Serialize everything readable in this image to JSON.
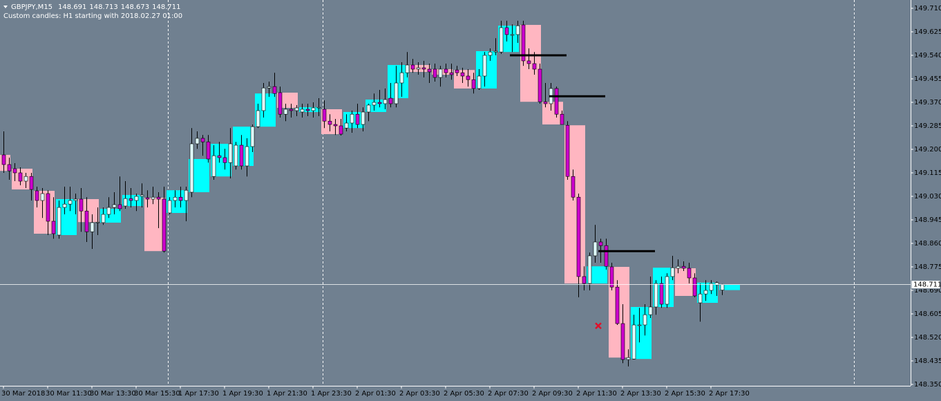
{
  "chart_data": {
    "type": "candlestick",
    "symbol": "GBPJPY,M15",
    "subtitle": "Custom candles: H1 starting with 2018.02.27 01:00",
    "categories": [
      "30 Mar 2018",
      null,
      null,
      null,
      null,
      null,
      null,
      null,
      "30 Mar 11:30",
      null,
      null,
      null,
      null,
      null,
      null,
      null,
      "30 Mar 13:30",
      null,
      null,
      null,
      null,
      null,
      null,
      null,
      "30 Mar 15:30",
      null,
      null,
      null,
      null,
      null,
      null,
      null,
      "1 Apr 17:30",
      null,
      null,
      null,
      null,
      null,
      null,
      null,
      "1 Apr 19:30",
      null,
      null,
      null,
      null,
      null,
      null,
      null,
      "1 Apr 21:30",
      null,
      null,
      null,
      null,
      null,
      null,
      null,
      "1 Apr 23:30",
      null,
      null,
      null,
      null,
      null,
      null,
      null,
      "2 Apr 01:30",
      null,
      null,
      null,
      null,
      null,
      null,
      null,
      "2 Apr 03:30",
      null,
      null,
      null,
      null,
      null,
      null,
      null,
      "2 Apr 05:30",
      null,
      null,
      null,
      null,
      null,
      null,
      null,
      "2 Apr 07:30",
      null,
      null,
      null,
      null,
      null,
      null,
      null,
      "2 Apr 09:30",
      null,
      null,
      null,
      null,
      null,
      null,
      null,
      "2 Apr 11:30",
      null,
      null,
      null,
      null,
      null,
      null,
      null,
      "2 Apr 13:30",
      null,
      null,
      null,
      null,
      null,
      null,
      null,
      "2 Apr 15:30",
      null,
      null,
      null,
      null,
      null,
      null,
      null,
      "2 Apr 17:30",
      null,
      null
    ],
    "open": [
      149.18,
      149.145,
      149.13,
      149.115,
      149.085,
      149.102,
      149.05,
      149.015,
      149.04,
      148.94,
      148.89,
      148.99,
      149.002,
      149.015,
      149.02,
      148.977,
      148.902,
      148.935,
      148.935,
      148.965,
      148.99,
      149.0,
      148.995,
      149.022,
      149.015,
      149.03,
      149.025,
      149.02,
      149.027,
      149.02,
      148.97,
      149.015,
      149.027,
      149.015,
      149.045,
      149.22,
      149.24,
      149.227,
      149.102,
      149.177,
      149.17,
      149.152,
      149.14,
      149.215,
      149.14,
      149.21,
      149.282,
      149.34,
      149.422,
      149.427,
      149.405,
      149.327,
      149.345,
      149.34,
      149.335,
      149.345,
      149.34,
      149.35,
      149.345,
      149.302,
      149.29,
      149.285,
      149.277,
      149.295,
      149.327,
      149.29,
      149.335,
      149.36,
      149.37,
      149.365,
      149.385,
      149.365,
      149.44,
      149.477,
      149.505,
      149.49,
      149.495,
      149.49,
      149.49,
      149.46,
      149.49,
      149.477,
      149.487,
      149.477,
      149.465,
      149.452,
      149.42,
      149.465,
      149.54,
      149.552,
      149.552,
      149.64,
      149.615,
      149.615,
      149.65,
      149.52,
      149.51,
      149.49,
      149.372,
      149.365,
      149.42,
      149.327,
      149.287,
      149.102,
      149.027,
      148.74,
      148.715,
      148.815,
      148.865,
      148.852,
      148.775,
      148.702,
      148.57,
      148.44,
      148.442,
      148.565,
      148.565,
      148.602,
      148.63,
      148.715,
      148.64,
      148.74,
      148.77,
      148.777,
      148.77,
      148.735,
      148.645,
      148.677,
      148.69,
      148.71,
      148.691
    ],
    "high": [
      149.265,
      149.17,
      149.15,
      149.135,
      149.115,
      149.115,
      149.065,
      149.06,
      149.052,
      149.027,
      149.015,
      149.065,
      149.065,
      149.04,
      149.06,
      149.027,
      148.965,
      148.99,
      148.99,
      149.027,
      149.045,
      149.102,
      149.085,
      149.06,
      149.04,
      149.077,
      149.052,
      149.065,
      149.045,
      149.065,
      149.027,
      149.052,
      149.065,
      149.065,
      149.277,
      149.265,
      149.252,
      149.252,
      149.215,
      149.227,
      149.202,
      149.277,
      149.227,
      149.252,
      149.24,
      149.29,
      149.365,
      149.44,
      149.445,
      149.477,
      149.427,
      149.365,
      149.365,
      149.36,
      149.365,
      149.365,
      149.37,
      149.385,
      149.377,
      149.327,
      149.31,
      149.31,
      149.327,
      149.34,
      149.365,
      149.352,
      149.365,
      149.402,
      149.415,
      149.42,
      149.44,
      149.502,
      149.515,
      149.552,
      149.527,
      149.515,
      149.52,
      149.51,
      149.51,
      149.502,
      149.51,
      149.51,
      149.502,
      149.495,
      149.49,
      149.477,
      149.49,
      149.552,
      149.565,
      149.602,
      149.665,
      149.665,
      149.652,
      149.665,
      149.665,
      149.565,
      149.552,
      149.51,
      149.44,
      149.44,
      149.427,
      149.34,
      149.302,
      149.127,
      149.04,
      148.777,
      148.827,
      148.927,
      148.877,
      148.877,
      148.79,
      148.727,
      148.64,
      148.477,
      148.602,
      148.627,
      148.64,
      148.74,
      148.727,
      148.74,
      148.752,
      148.815,
      148.802,
      148.795,
      148.79,
      148.752,
      148.715,
      148.727,
      148.727,
      148.722,
      148.713
    ],
    "low": [
      149.115,
      149.09,
      149.085,
      149.07,
      149.06,
      149.015,
      148.99,
      148.952,
      148.89,
      148.877,
      148.877,
      148.965,
      148.977,
      148.965,
      148.902,
      148.865,
      148.84,
      148.89,
      148.927,
      148.952,
      148.965,
      148.977,
      148.985,
      148.99,
      148.977,
      148.99,
      148.99,
      149.002,
      148.915,
      148.827,
      148.965,
      148.99,
      148.99,
      148.94,
      149.027,
      149.202,
      149.177,
      149.152,
      149.09,
      149.152,
      149.127,
      149.095,
      149.127,
      149.127,
      149.102,
      149.19,
      149.277,
      149.315,
      149.39,
      149.39,
      149.315,
      149.302,
      149.315,
      149.32,
      149.315,
      149.32,
      149.315,
      149.32,
      149.277,
      149.265,
      149.252,
      149.25,
      149.265,
      149.26,
      149.277,
      149.265,
      149.302,
      149.34,
      149.352,
      149.345,
      149.352,
      149.352,
      149.39,
      149.46,
      149.477,
      149.47,
      149.46,
      149.44,
      149.445,
      149.427,
      149.46,
      149.452,
      149.465,
      149.44,
      149.427,
      149.402,
      149.415,
      149.427,
      149.52,
      149.54,
      149.545,
      149.59,
      149.552,
      149.585,
      149.502,
      149.49,
      149.47,
      149.365,
      149.352,
      149.34,
      149.315,
      149.29,
      149.09,
      149.015,
      148.665,
      148.69,
      148.69,
      148.79,
      148.79,
      148.765,
      148.69,
      148.565,
      148.427,
      148.415,
      148.44,
      148.502,
      148.527,
      148.59,
      148.602,
      148.627,
      148.627,
      148.727,
      148.752,
      148.76,
      148.715,
      148.665,
      148.577,
      148.652,
      148.677,
      148.67,
      148.673
    ],
    "close": [
      149.145,
      149.122,
      149.115,
      149.085,
      149.102,
      149.055,
      149.015,
      149.04,
      148.94,
      148.895,
      148.99,
      149.002,
      149.015,
      149.02,
      148.977,
      148.902,
      148.935,
      148.937,
      148.965,
      148.99,
      149.0,
      148.985,
      149.022,
      149.015,
      149.03,
      149.035,
      149.02,
      149.027,
      149.02,
      148.832,
      149.015,
      149.027,
      149.015,
      149.052,
      149.22,
      149.24,
      149.227,
      149.165,
      149.177,
      149.17,
      149.152,
      149.22,
      149.215,
      149.14,
      149.21,
      149.282,
      149.34,
      149.422,
      149.427,
      149.402,
      149.327,
      149.345,
      149.34,
      149.35,
      149.345,
      149.34,
      149.35,
      149.352,
      149.302,
      149.29,
      149.285,
      149.255,
      149.295,
      149.327,
      149.29,
      149.335,
      149.36,
      149.37,
      149.365,
      149.38,
      149.365,
      149.44,
      149.477,
      149.505,
      149.49,
      149.495,
      149.49,
      149.48,
      149.46,
      149.49,
      149.477,
      149.47,
      149.477,
      149.465,
      149.452,
      149.42,
      149.465,
      149.54,
      149.552,
      149.555,
      149.64,
      149.615,
      149.615,
      149.647,
      149.52,
      149.51,
      149.49,
      149.372,
      149.365,
      149.42,
      149.327,
      149.29,
      149.102,
      149.027,
      148.74,
      148.715,
      148.815,
      148.865,
      148.852,
      148.777,
      148.702,
      148.57,
      148.44,
      148.447,
      148.565,
      148.565,
      148.602,
      148.63,
      148.715,
      148.64,
      148.74,
      148.772,
      148.777,
      148.77,
      148.735,
      148.67,
      148.677,
      148.69,
      148.715,
      148.718,
      148.711
    ],
    "ylim": [
      148.345,
      149.74
    ],
    "yticks": [
      {
        "value": 149.71,
        "label": "149.710"
      },
      149.625,
      {
        "value": 149.54,
        "label": "149.540"
      },
      149.455,
      {
        "value": 149.37,
        "label": "149.370"
      },
      149.285,
      {
        "value": 149.2,
        "label": "149.200"
      },
      149.115,
      {
        "value": 149.03,
        "label": "149.030"
      },
      148.945,
      {
        "value": 148.86,
        "label": "148.860"
      },
      148.775,
      {
        "value": 148.69,
        "label": "148.690"
      },
      148.605,
      {
        "value": 148.52,
        "label": "148.520"
      },
      148.435,
      {
        "value": 148.35,
        "label": "148.350"
      }
    ],
    "levels": [
      149.54,
      149.392,
      148.832
    ],
    "signal": 148.562,
    "colors": {
      "up_box": "#00ffff",
      "down_box": "#ffb6c1",
      "up_body": "#e0ffff",
      "down_body": "#cc00cc",
      "wick": "#000000",
      "level": "#000000",
      "signal": "#e0102a",
      "bid_line": "#ffffff"
    }
  }
}
